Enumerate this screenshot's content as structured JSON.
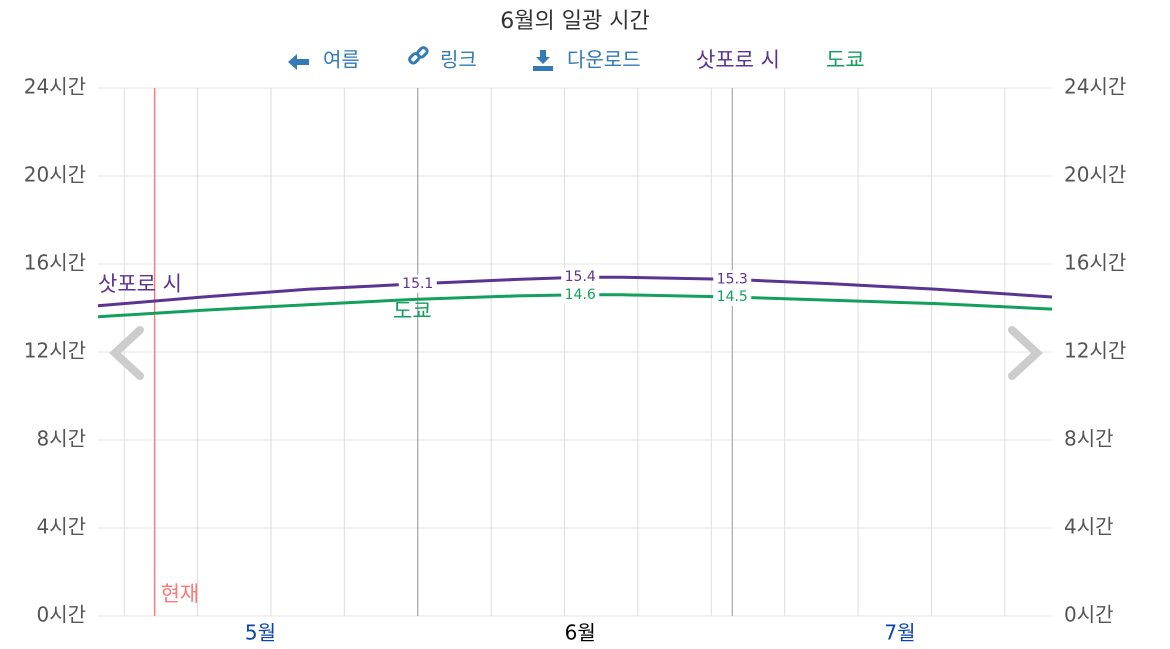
{
  "chart_data": {
    "type": "line",
    "title": "6월의 일광 시간",
    "nav": [
      "여름",
      "링크",
      "다운로드"
    ],
    "x": [
      0,
      10,
      20,
      30.5,
      40,
      46,
      50,
      60.5,
      70,
      80,
      91
    ],
    "xlim": [
      0,
      91
    ],
    "xticks": [
      {
        "value": 15.5,
        "label": "5월"
      },
      {
        "value": 46,
        "label": "6월"
      },
      {
        "value": 76.5,
        "label": "7월"
      }
    ],
    "xgrid": [
      2.5,
      9.5,
      16.5,
      23.5,
      30.5,
      37.5,
      44.5,
      51.5,
      58.5,
      65.5,
      72.5,
      79.5,
      86.5
    ],
    "month_bounds": [
      30.5,
      60.5
    ],
    "now": {
      "x": 5.4,
      "label": "현재",
      "color": "#f77"
    },
    "ylim": [
      0,
      24
    ],
    "yticks": [
      {
        "value": 0,
        "label": "0시간"
      },
      {
        "value": 4,
        "label": "4시간"
      },
      {
        "value": 8,
        "label": "8시간"
      },
      {
        "value": 12,
        "label": "12시간"
      },
      {
        "value": 16,
        "label": "16시간"
      },
      {
        "value": 20,
        "label": "20시간"
      },
      {
        "value": 24,
        "label": "24시간"
      }
    ],
    "grid": true,
    "series": [
      {
        "name": "삿포로 시",
        "color": "#5b3491",
        "values": [
          14.1,
          14.5,
          14.85,
          15.1,
          15.3,
          15.4,
          15.4,
          15.3,
          15.1,
          14.85,
          14.5
        ],
        "labeled_points": [
          3,
          5,
          7
        ]
      },
      {
        "name": "도쿄",
        "color": "#12a05c",
        "values": [
          13.6,
          13.9,
          14.15,
          14.4,
          14.55,
          14.6,
          14.6,
          14.5,
          14.35,
          14.2,
          13.95
        ],
        "labeled_points": [
          5,
          7
        ]
      }
    ]
  }
}
